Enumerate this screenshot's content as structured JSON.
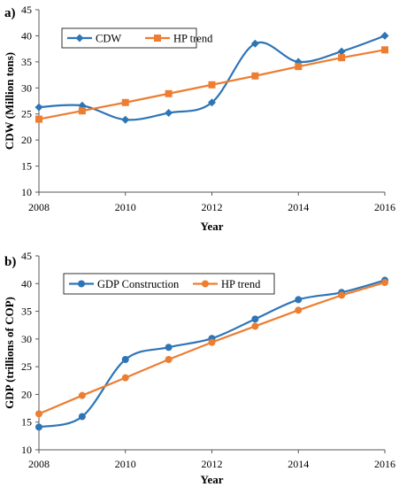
{
  "chart_data": [
    {
      "type": "line",
      "panel_label": "a)",
      "x": [
        2008,
        2009,
        2010,
        2011,
        2012,
        2013,
        2014,
        2015,
        2016
      ],
      "xlim": [
        2008,
        2016
      ],
      "x_ticks": [
        2008,
        2010,
        2012,
        2014,
        2016
      ],
      "ylim": [
        10,
        45
      ],
      "y_ticks": [
        10,
        15,
        20,
        25,
        30,
        35,
        40,
        45
      ],
      "xlabel": "Year",
      "ylabel": "CDW  (Million tons)",
      "grid": false,
      "legend": "top-left",
      "series": [
        {
          "name": "CDW",
          "color": "#2e75b6",
          "marker": "diamond",
          "smooth": true,
          "values": [
            26.3,
            26.6,
            23.9,
            25.2,
            27.2,
            38.5,
            35.0,
            37.0,
            40.0
          ]
        },
        {
          "name": "HP trend",
          "color": "#ed7d31",
          "marker": "square",
          "smooth": false,
          "values": [
            24.0,
            25.6,
            27.2,
            28.9,
            30.6,
            32.3,
            34.1,
            35.8,
            37.3
          ]
        }
      ]
    },
    {
      "type": "line",
      "panel_label": "b)",
      "x": [
        2008,
        2009,
        2010,
        2011,
        2012,
        2013,
        2014,
        2015,
        2016
      ],
      "xlim": [
        2008,
        2016
      ],
      "x_ticks": [
        2008,
        2010,
        2012,
        2014,
        2016
      ],
      "ylim": [
        10,
        45
      ],
      "y_ticks": [
        10,
        15,
        20,
        25,
        30,
        35,
        40,
        45
      ],
      "xlabel": "Year",
      "ylabel": "GDP (trillions of COP)",
      "grid": false,
      "legend": "top-left",
      "series": [
        {
          "name": "GDP Construction",
          "color": "#2e75b6",
          "marker": "circle",
          "smooth": true,
          "values": [
            14.1,
            16.0,
            26.3,
            28.5,
            30.1,
            33.6,
            37.1,
            38.4,
            40.6
          ]
        },
        {
          "name": "HP trend",
          "color": "#ed7d31",
          "marker": "circle",
          "smooth": false,
          "values": [
            16.5,
            19.8,
            23.0,
            26.3,
            29.4,
            32.3,
            35.2,
            37.9,
            40.2
          ]
        }
      ]
    }
  ]
}
